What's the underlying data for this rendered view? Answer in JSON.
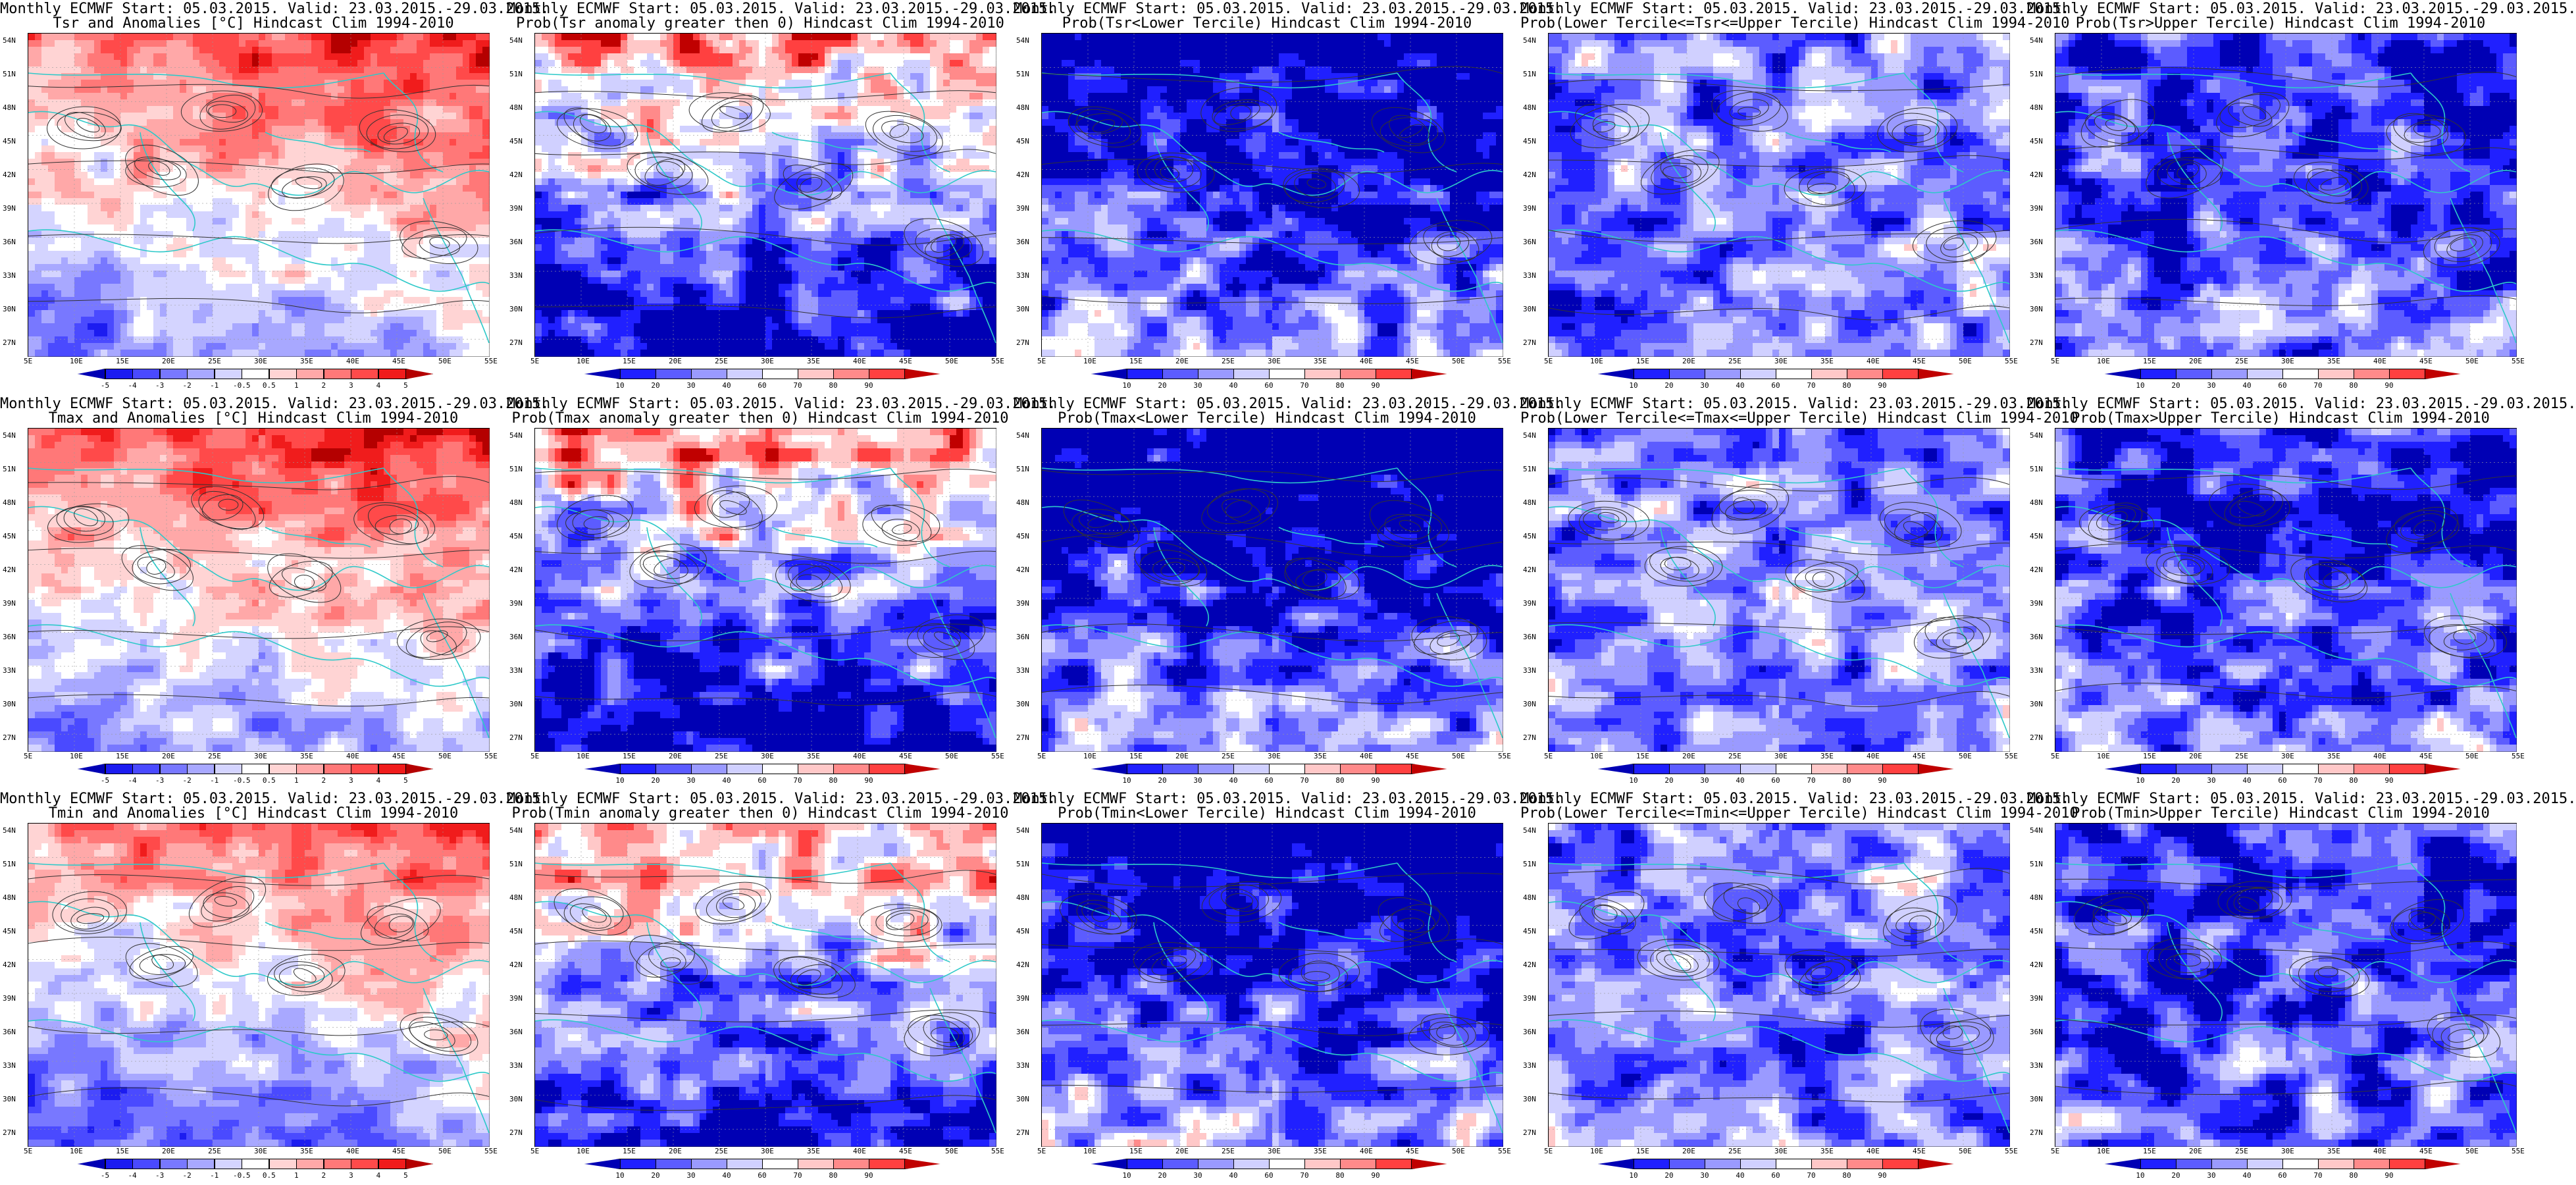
{
  "rows": [
    {
      "variable": "Tsr",
      "panels": [
        {
          "line1": "Monthly ECMWF Start: 05.03.2015. Valid: 23.03.2015.-29.03.2015.",
          "line2": "Tsr and Anomalies [°C] Hindcast Clim 1994-2010",
          "kind": "anomaly",
          "field": "tsr-anom"
        },
        {
          "line1": "Monthly ECMWF Start: 05.03.2015. Valid: 23.03.2015.-29.03.2015.",
          "line2": "Prob(Tsr anomaly greater then 0) Hindcast Clim 1994-2010",
          "kind": "prob",
          "field": "tsr-gt0"
        },
        {
          "line1": "Monthly ECMWF Start: 05.03.2015. Valid: 23.03.2015.-29.03.2015.",
          "line2": "Prob(Tsr<Lower Tercile) Hindcast Clim 1994-2010",
          "kind": "prob",
          "field": "tsr-lower"
        },
        {
          "line1": "Monthly ECMWF Start: 05.03.2015. Valid: 23.03.2015.-29.03.2015.",
          "line2": "Prob(Lower Tercile<=Tsr<=Upper Tercile) Hindcast Clim 1994-2010",
          "kind": "prob",
          "field": "tsr-middle"
        },
        {
          "line1": "Monthly ECMWF Start: 05.03.2015. Valid: 23.03.2015.-29.03.2015.",
          "line2": "Prob(Tsr>Upper Tercile) Hindcast Clim 1994-2010",
          "kind": "prob",
          "field": "tsr-upper"
        }
      ]
    },
    {
      "variable": "Tmax",
      "panels": [
        {
          "line1": "Monthly ECMWF Start: 05.03.2015. Valid: 23.03.2015.-29.03.2015.",
          "line2": "Tmax and Anomalies [°C] Hindcast Clim 1994-2010",
          "kind": "anomaly",
          "field": "tmax-anom"
        },
        {
          "line1": "Monthly ECMWF Start: 05.03.2015. Valid: 23.03.2015.-29.03.2015.",
          "line2": "Prob(Tmax anomaly greater then 0) Hindcast Clim 1994-2010",
          "kind": "prob",
          "field": "tmax-gt0"
        },
        {
          "line1": "Monthly ECMWF Start: 05.03.2015. Valid: 23.03.2015.-29.03.2015.",
          "line2": "Prob(Tmax<Lower Tercile) Hindcast Clim 1994-2010",
          "kind": "prob",
          "field": "tmax-lower"
        },
        {
          "line1": "Monthly ECMWF Start: 05.03.2015. Valid: 23.03.2015.-29.03.2015.",
          "line2": "Prob(Lower Tercile<=Tmax<=Upper Tercile) Hindcast Clim 1994-2010",
          "kind": "prob",
          "field": "tmax-middle"
        },
        {
          "line1": "Monthly ECMWF Start: 05.03.2015. Valid: 23.03.2015.-29.03.2015.",
          "line2": "Prob(Tmax>Upper Tercile) Hindcast Clim 1994-2010",
          "kind": "prob",
          "field": "tmax-upper"
        }
      ]
    },
    {
      "variable": "Tmin",
      "panels": [
        {
          "line1": "Monthly ECMWF Start: 05.03.2015. Valid: 23.03.2015.-29.03.2015.",
          "line2": "Tmin and Anomalies [°C] Hindcast Clim 1994-2010",
          "kind": "anomaly",
          "field": "tmin-anom"
        },
        {
          "line1": "Monthly ECMWF Start: 05.03.2015. Valid: 23.03.2015.-29.03.2015.",
          "line2": "Prob(Tmin anomaly greater then 0) Hindcast Clim 1994-2010",
          "kind": "prob",
          "field": "tmin-gt0"
        },
        {
          "line1": "Monthly ECMWF Start: 05.03.2015. Valid: 23.03.2015.-29.03.2015.",
          "line2": "Prob(Tmin<Lower Tercile) Hindcast Clim 1994-2010",
          "kind": "prob",
          "field": "tmin-lower"
        },
        {
          "line1": "Monthly ECMWF Start: 05.03.2015. Valid: 23.03.2015.-29.03.2015.",
          "line2": "Prob(Lower Tercile<=Tmin<=Upper Tercile) Hindcast Clim 1994-2010",
          "kind": "prob",
          "field": "tmin-middle"
        },
        {
          "line1": "Monthly ECMWF Start: 05.03.2015. Valid: 23.03.2015.-29.03.2015.",
          "line2": "Prob(Tmin>Upper Tercile) Hindcast Clim 1994-2010",
          "kind": "prob",
          "field": "tmin-upper"
        }
      ]
    }
  ],
  "lat_labels": [
    "54N",
    "51N",
    "48N",
    "45N",
    "42N",
    "39N",
    "36N",
    "33N",
    "30N",
    "27N"
  ],
  "lon_labels": [
    "5E",
    "10E",
    "15E",
    "20E",
    "25E",
    "30E",
    "35E",
    "40E",
    "45E",
    "50E",
    "55E"
  ],
  "anomaly_colorbar": {
    "ticks": [
      "-5",
      "-4",
      "-3",
      "-2",
      "-1",
      "-0.5",
      "0.5",
      "1",
      "2",
      "3",
      "4",
      "5"
    ],
    "colors": [
      "#0000b4",
      "#1c1cf0",
      "#4a4aff",
      "#7878ff",
      "#a8a8ff",
      "#d4d4ff",
      "#ffffff",
      "#ffd4d4",
      "#ffa8a8",
      "#ff7878",
      "#ff4a4a",
      "#f01c1c",
      "#b40000"
    ]
  },
  "probability_colorbar": {
    "ticks": [
      "10",
      "20",
      "30",
      "40",
      "60",
      "70",
      "80",
      "90"
    ],
    "colors": [
      "#0000b4",
      "#2020ff",
      "#5c5cff",
      "#9a9aff",
      "#d0d0ff",
      "#ffffff",
      "#ffc8c8",
      "#ff8a8a",
      "#ff4040",
      "#c00000"
    ]
  },
  "map_colors": {
    "coastline": "#2ec9c9",
    "contour": "#333333"
  }
}
